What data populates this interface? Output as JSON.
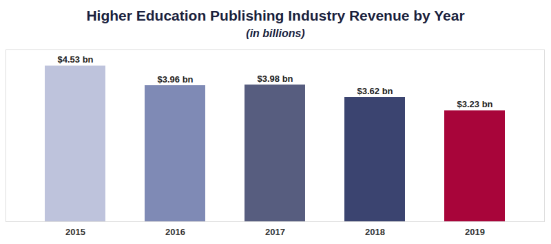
{
  "chart_data": {
    "type": "bar",
    "title": "Higher Education Publishing Industry Revenue by Year",
    "subtitle": "(in billions)",
    "categories": [
      "2015",
      "2016",
      "2017",
      "2018",
      "2019"
    ],
    "values": [
      4.53,
      3.96,
      3.98,
      3.62,
      3.23
    ],
    "value_labels": [
      "$4.53 bn",
      "$3.96 bn",
      "$3.98 bn",
      "$3.62 bn",
      "$3.23 bn"
    ],
    "colors": [
      "#bec3dc",
      "#7f8ab5",
      "#575d7f",
      "#3b4470",
      "#a8053a"
    ],
    "ylim": [
      0,
      5
    ],
    "yticks": [],
    "grid": false,
    "data_labels": true,
    "tick_labels": "x"
  }
}
